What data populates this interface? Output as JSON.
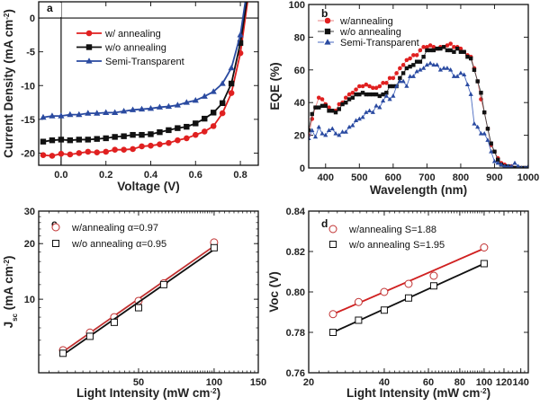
{
  "chart_data": [
    {
      "id": "a",
      "type": "line",
      "panel_label": "a",
      "xlabel": [
        {
          "t": "Voltage (V)"
        }
      ],
      "ylabel": [
        {
          "t": "Current Density (mA cm"
        },
        {
          "t": "-2",
          "sup": true
        },
        {
          "t": ")"
        }
      ],
      "xscale": "linear",
      "yscale": "linear",
      "xlim": [
        -0.1,
        0.88
      ],
      "ylim": [
        -21.8,
        2.4
      ],
      "xticks": [
        0.0,
        0.2,
        0.4,
        0.6,
        0.8
      ],
      "xtick_labels": [
        "0.0",
        "0.2",
        "0.4",
        "0.6",
        "0.8"
      ],
      "yticks": [
        -20,
        -15,
        -10,
        -5,
        0
      ],
      "ytick_labels": [
        "-20",
        "-15",
        "-10",
        "-5",
        "0"
      ],
      "zero_lines": true,
      "legend_position": "top-left",
      "series": [
        {
          "name": "w/ annealing",
          "color": "#e02020",
          "marker": "circle",
          "x": [
            -0.08,
            -0.04,
            0,
            0.04,
            0.08,
            0.12,
            0.16,
            0.2,
            0.24,
            0.28,
            0.32,
            0.36,
            0.4,
            0.44,
            0.48,
            0.52,
            0.56,
            0.6,
            0.64,
            0.68,
            0.72,
            0.76,
            0.8
          ],
          "y": [
            -20.3,
            -20.4,
            -20.1,
            -20.2,
            -20.0,
            -19.8,
            -19.9,
            -19.8,
            -19.5,
            -19.5,
            -19.4,
            -19.0,
            -18.9,
            -18.7,
            -18.5,
            -18.1,
            -17.8,
            -17.3,
            -16.8,
            -16.0,
            -14.1,
            -11.1,
            -5.2
          ],
          "line_end": [
            0.832,
            2.4
          ]
        },
        {
          "name": "w/o annealing",
          "color": "#111111",
          "marker": "square",
          "x": [
            -0.08,
            -0.04,
            0,
            0.04,
            0.08,
            0.12,
            0.16,
            0.2,
            0.24,
            0.28,
            0.32,
            0.36,
            0.4,
            0.44,
            0.48,
            0.52,
            0.56,
            0.6,
            0.64,
            0.68,
            0.72,
            0.76,
            0.8
          ],
          "y": [
            -18.3,
            -18.1,
            -18.0,
            -18.1,
            -18.0,
            -18.0,
            -17.9,
            -17.8,
            -17.6,
            -17.5,
            -17.3,
            -17.3,
            -17.2,
            -16.9,
            -16.6,
            -16.3,
            -16.1,
            -15.6,
            -14.9,
            -14.0,
            -12.6,
            -9.7,
            -3.7
          ],
          "line_end": [
            0.828,
            2.4
          ]
        },
        {
          "name": "Semi-Transparent",
          "color": "#2a4aa0",
          "marker": "triangle",
          "x": [
            -0.08,
            -0.04,
            0,
            0.04,
            0.08,
            0.12,
            0.16,
            0.2,
            0.24,
            0.28,
            0.32,
            0.36,
            0.4,
            0.44,
            0.48,
            0.52,
            0.56,
            0.6,
            0.64,
            0.68,
            0.72,
            0.76,
            0.8
          ],
          "y": [
            -14.7,
            -14.5,
            -14.5,
            -14.3,
            -14.3,
            -14.1,
            -14.1,
            -14.0,
            -14.0,
            -13.8,
            -13.6,
            -13.5,
            -13.4,
            -13.2,
            -13.1,
            -12.9,
            -12.5,
            -12.2,
            -11.6,
            -10.9,
            -9.7,
            -7.4,
            -2.5
          ],
          "line_end": [
            0.822,
            2.4
          ]
        }
      ]
    },
    {
      "id": "b",
      "type": "line",
      "panel_label": "b",
      "xlabel": [
        {
          "t": "Wavelength (nm)"
        }
      ],
      "ylabel": [
        {
          "t": "EQE (%)"
        }
      ],
      "xscale": "linear",
      "yscale": "linear",
      "xlim": [
        350,
        1000
      ],
      "ylim": [
        0,
        100
      ],
      "xticks": [
        400,
        500,
        600,
        700,
        800,
        900,
        1000
      ],
      "xtick_labels": [
        "400",
        "500",
        "600",
        "700",
        "800",
        "900",
        "1000"
      ],
      "yticks": [
        0,
        20,
        40,
        60,
        80,
        100
      ],
      "ytick_labels": [
        "0",
        "20",
        "40",
        "60",
        "80",
        "100"
      ],
      "legend_position": "top-left",
      "x_common": [
        350,
        360,
        370,
        380,
        390,
        400,
        410,
        420,
        430,
        440,
        450,
        460,
        470,
        480,
        490,
        500,
        510,
        520,
        530,
        540,
        550,
        560,
        570,
        580,
        590,
        600,
        610,
        620,
        630,
        640,
        650,
        660,
        670,
        680,
        690,
        700,
        710,
        720,
        730,
        740,
        750,
        760,
        770,
        780,
        790,
        800,
        810,
        820,
        830,
        840,
        850,
        860,
        870,
        880,
        890,
        900,
        910,
        920,
        930,
        940,
        950,
        960,
        970,
        980,
        990,
        1000
      ],
      "series": [
        {
          "name": "w/annealing",
          "color": "#e02020",
          "line_color": "#e88080",
          "marker": "circle",
          "y": [
            20,
            30,
            37,
            43,
            42,
            39,
            37,
            35,
            35,
            39,
            40,
            43,
            45,
            46,
            48,
            50,
            50,
            51,
            50,
            49,
            49,
            50,
            52,
            52,
            55,
            55,
            58,
            61,
            63,
            66,
            67,
            69,
            69,
            72,
            74,
            74,
            75,
            74,
            73,
            74,
            74,
            75,
            76,
            74,
            74,
            73,
            71,
            69,
            68,
            61,
            53,
            42,
            34,
            24,
            14,
            10,
            6,
            3,
            2,
            1,
            1,
            0,
            0,
            0,
            0,
            0
          ]
        },
        {
          "name": "w/o annealing",
          "color": "#111111",
          "line_color": "#444444",
          "marker": "square",
          "y": [
            23,
            33,
            37,
            37,
            38,
            38,
            35,
            35,
            34,
            36,
            39,
            40,
            42,
            43,
            45,
            45,
            46,
            45,
            45,
            45,
            45,
            44,
            45,
            46,
            50,
            50,
            50,
            55,
            58,
            61,
            62,
            63,
            65,
            65,
            68,
            72,
            72,
            72,
            73,
            73,
            74,
            72,
            72,
            71,
            73,
            71,
            71,
            68,
            67,
            60,
            53,
            46,
            34,
            24,
            15,
            10,
            5,
            2,
            1,
            1,
            0,
            0,
            0,
            0,
            0,
            0
          ]
        },
        {
          "name": "Semi-Transparent",
          "color": "#2a4aa0",
          "line_color": "#4a6ac0",
          "marker": "triangle",
          "y": [
            18,
            23,
            19,
            25,
            21,
            20,
            23,
            24,
            21,
            20,
            22,
            22,
            25,
            26,
            29,
            30,
            31,
            34,
            35,
            34,
            38,
            37,
            41,
            44,
            42,
            44,
            50,
            53,
            53,
            50,
            56,
            56,
            59,
            60,
            61,
            63,
            64,
            63,
            63,
            60,
            61,
            61,
            60,
            56,
            56,
            58,
            57,
            51,
            45,
            27,
            25,
            21,
            21,
            17,
            10,
            4,
            3,
            2,
            1,
            1,
            1,
            3,
            1,
            0,
            0,
            1
          ]
        }
      ]
    },
    {
      "id": "c",
      "type": "scatter",
      "panel_label": "c",
      "xlabel": [
        {
          "t": "Light Intensity (mW cm"
        },
        {
          "t": "-2",
          "sup": true
        },
        {
          "t": ")"
        }
      ],
      "ylabel": [
        {
          "t": "J"
        },
        {
          "t": "sc",
          "sub": true
        },
        {
          "t": " (mA cm"
        },
        {
          "t": "-2",
          "sup": true
        },
        {
          "t": ")"
        }
      ],
      "xscale": "log",
      "yscale": "log",
      "xlim": [
        20,
        150
      ],
      "ylim": [
        4,
        30
      ],
      "xticks": [
        50,
        100,
        150
      ],
      "xtick_labels": [
        "50",
        "100",
        "150"
      ],
      "yticks": [
        10,
        20,
        30
      ],
      "ytick_labels": [
        "10",
        "20",
        "30"
      ],
      "legend_position": "top-left",
      "series": [
        {
          "name": "w/annealing α=0.97",
          "color": "#c03030",
          "marker": "open-circle",
          "x": [
            25,
            32,
            40,
            50,
            63,
            100
          ],
          "y": [
            5.3,
            6.6,
            8.0,
            9.8,
            12.2,
            20.3
          ],
          "fit": {
            "x": [
              25,
              100
            ],
            "y": [
              5.2,
              19.4
            ],
            "color": "#c03030"
          }
        },
        {
          "name": "w/o annealing α=0.95",
          "color": "#111111",
          "marker": "open-square",
          "x": [
            25,
            32,
            40,
            50,
            63,
            100
          ],
          "y": [
            5.1,
            6.3,
            7.5,
            9.0,
            12.0,
            19.0
          ],
          "fit": {
            "x": [
              25,
              100
            ],
            "y": [
              5.0,
              18.6
            ],
            "color": "#111111"
          }
        }
      ]
    },
    {
      "id": "d",
      "type": "scatter",
      "panel_label": "d",
      "xlabel": [
        {
          "t": "Light Intensity (mW cm"
        },
        {
          "t": "-2",
          "sup": true
        },
        {
          "t": ")"
        }
      ],
      "ylabel": [
        {
          "t": "Voc (V)"
        }
      ],
      "xscale": "log",
      "yscale": "linear",
      "xlim": [
        20,
        150
      ],
      "ylim": [
        0.76,
        0.84
      ],
      "xticks": [
        20,
        40,
        60,
        80,
        100,
        120,
        140
      ],
      "xtick_labels": [
        "20",
        "40",
        "60",
        "80",
        "100",
        "120",
        "140"
      ],
      "yticks": [
        0.76,
        0.78,
        0.8,
        0.82,
        0.84
      ],
      "ytick_labels": [
        "0.76",
        "0.78",
        "0.80",
        "0.82",
        "0.84"
      ],
      "legend_position": "top-left",
      "series": [
        {
          "name": "w/annealing S=1.88",
          "color": "#c03030",
          "marker": "open-circle",
          "x": [
            25,
            31.6,
            40,
            50,
            63,
            100
          ],
          "y": [
            0.789,
            0.795,
            0.8,
            0.804,
            0.808,
            0.822
          ],
          "fit": {
            "x": [
              25,
              100
            ],
            "y": [
              0.789,
              0.8215
            ],
            "color": "#d02020"
          }
        },
        {
          "name": "w/o annealing S=1.95",
          "color": "#111111",
          "marker": "open-square",
          "x": [
            25,
            31.6,
            40,
            50,
            63,
            100
          ],
          "y": [
            0.78,
            0.786,
            0.791,
            0.797,
            0.803,
            0.814
          ],
          "fit": {
            "x": [
              25,
              100
            ],
            "y": [
              0.78,
              0.814
            ],
            "color": "#111111"
          }
        }
      ]
    }
  ]
}
